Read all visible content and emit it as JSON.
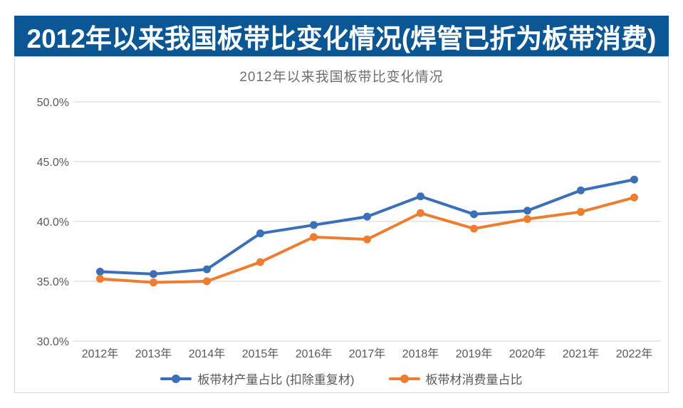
{
  "banner": {
    "title": "2012年以来我国板带比变化情况(焊管已折为板带消费)",
    "background_color": "#0b5796",
    "text_color": "#ffffff"
  },
  "colors": {
    "grid": "#dcdcdc",
    "axis_text": "#595959",
    "chart_title_text": "#6e6e6e",
    "card_border": "#d6d6d6",
    "series_blue": "#3b70b8",
    "series_orange": "#ed7d31"
  },
  "chart_data": {
    "type": "line",
    "title": "2012年以来我国板带比变化情况",
    "categories": [
      "2012年",
      "2013年",
      "2014年",
      "2015年",
      "2016年",
      "2017年",
      "2018年",
      "2019年",
      "2020年",
      "2021年",
      "2022年"
    ],
    "series": [
      {
        "name": "板带材产量占比 (扣除重复材)",
        "color": "#3b70b8",
        "values": [
          35.8,
          35.6,
          36.0,
          39.0,
          39.7,
          40.4,
          42.1,
          40.6,
          40.9,
          42.6,
          43.5
        ]
      },
      {
        "name": "板带材消费量占比",
        "color": "#ed7d31",
        "values": [
          35.2,
          34.9,
          35.0,
          36.6,
          38.7,
          38.5,
          40.7,
          39.4,
          40.2,
          40.8,
          42.0
        ]
      }
    ],
    "y_ticks": [
      "50.0%",
      "45.0%",
      "40.0%",
      "35.0%",
      "30.0%"
    ],
    "ylim": [
      30,
      50
    ],
    "xlabel": "",
    "ylabel": "",
    "grid": true,
    "legend_position": "bottom",
    "marker": "circle",
    "units": "percent"
  }
}
